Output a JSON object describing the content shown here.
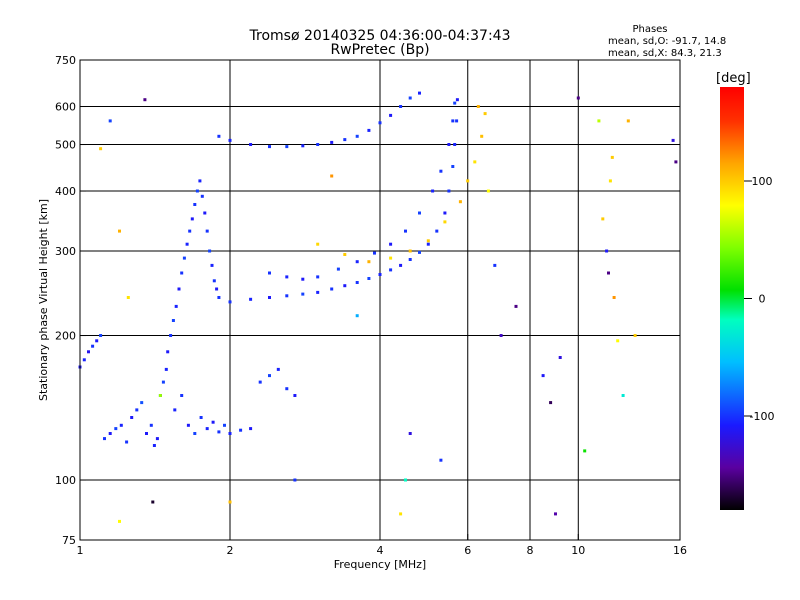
{
  "chart_data": {
    "type": "scatter",
    "title": "Tromsø 20140325 04:36:00-04:37:43",
    "subtitle": "RwPretec (Bp)",
    "xlabel": "Frequency [MHz]",
    "ylabel": "Stationary phase Virtual Height [km]",
    "x_scale": "log",
    "y_scale": "log",
    "xlim": [
      1,
      16
    ],
    "ylim": [
      75,
      750
    ],
    "x_ticks": [
      1,
      2,
      4,
      6,
      8,
      10,
      16
    ],
    "x_tick_labels": [
      "1",
      "2",
      "4",
      "6",
      "8",
      "10",
      "16"
    ],
    "y_ticks": [
      75,
      100,
      200,
      300,
      400,
      500,
      600,
      750
    ],
    "y_tick_labels": [
      "75",
      "100",
      "200",
      "300",
      "400",
      "500",
      "600",
      "750"
    ],
    "grid_x": [
      2,
      4,
      6,
      8,
      10
    ],
    "grid_y": [
      100,
      200,
      300,
      400,
      500,
      600
    ],
    "stats": {
      "header": "Phases",
      "o_line": "mean, sd,O: -91.7, 14.8",
      "x_line": "mean, sd,X: 84.3, 21.3"
    },
    "colorbar": {
      "unit": "[deg]",
      "min": -180,
      "max": 180,
      "ticks": [
        100,
        0,
        -100
      ],
      "tick_labels": [
        "100",
        "0",
        "-100"
      ]
    },
    "series": [
      {
        "id": "lowE",
        "points": [
          [
            1.0,
            172,
            -110
          ],
          [
            1.02,
            178,
            -105
          ],
          [
            1.04,
            185,
            -115
          ],
          [
            1.06,
            190,
            -100
          ],
          [
            1.08,
            195,
            -110
          ],
          [
            1.1,
            200,
            -95
          ],
          [
            1.12,
            122,
            -100
          ],
          [
            1.15,
            125,
            -110
          ],
          [
            1.18,
            128,
            -95
          ],
          [
            1.21,
            130,
            -105
          ],
          [
            1.24,
            120,
            -100
          ],
          [
            1.27,
            135,
            -110
          ],
          [
            1.3,
            140,
            -100
          ],
          [
            1.33,
            145,
            -90
          ],
          [
            1.36,
            125,
            -110
          ],
          [
            1.39,
            130,
            -100
          ],
          [
            1.41,
            118,
            -105
          ],
          [
            1.43,
            122,
            -110
          ],
          [
            1.45,
            150,
            -100
          ],
          [
            1.47,
            160,
            -95
          ],
          [
            1.49,
            170,
            -105
          ],
          [
            1.5,
            185,
            -110
          ],
          [
            1.52,
            200,
            -100
          ],
          [
            1.54,
            215,
            -95
          ],
          [
            1.56,
            230,
            -105
          ],
          [
            1.58,
            250,
            -110
          ],
          [
            1.6,
            270,
            -100
          ],
          [
            1.62,
            290,
            -95
          ],
          [
            1.64,
            310,
            -105
          ],
          [
            1.66,
            330,
            -100
          ],
          [
            1.68,
            350,
            -110
          ],
          [
            1.7,
            375,
            -100
          ],
          [
            1.72,
            400,
            -95
          ],
          [
            1.74,
            420,
            -105
          ],
          [
            1.76,
            390,
            -100
          ],
          [
            1.78,
            360,
            -110
          ],
          [
            1.8,
            330,
            -100
          ],
          [
            1.82,
            300,
            -95
          ],
          [
            1.84,
            280,
            -105
          ],
          [
            1.86,
            260,
            -100
          ],
          [
            1.88,
            250,
            -110
          ],
          [
            1.9,
            240,
            -100
          ],
          [
            1.55,
            140,
            -105
          ],
          [
            1.6,
            150,
            -100
          ],
          [
            1.65,
            130,
            -110
          ],
          [
            1.7,
            125,
            -95
          ],
          [
            1.75,
            135,
            -100
          ],
          [
            1.8,
            128,
            -105
          ],
          [
            1.85,
            132,
            -110
          ],
          [
            1.9,
            126,
            -100
          ],
          [
            1.95,
            130,
            -95
          ],
          [
            2.0,
            125,
            -105
          ],
          [
            2.1,
            127,
            -100
          ],
          [
            2.2,
            128,
            -110
          ],
          [
            2.3,
            160,
            -100
          ],
          [
            2.4,
            165,
            -95
          ],
          [
            2.5,
            170,
            -105
          ],
          [
            2.6,
            155,
            -100
          ],
          [
            2.7,
            150,
            -110
          ]
        ]
      },
      {
        "id": "Ftrace",
        "points": [
          [
            2.0,
            235,
            -100
          ],
          [
            2.2,
            238,
            -105
          ],
          [
            2.4,
            240,
            -110
          ],
          [
            2.6,
            242,
            -100
          ],
          [
            2.8,
            244,
            -95
          ],
          [
            3.0,
            246,
            -105
          ],
          [
            3.2,
            250,
            -100
          ],
          [
            3.4,
            254,
            -110
          ],
          [
            3.6,
            258,
            -100
          ],
          [
            3.8,
            263,
            -95
          ],
          [
            4.0,
            268,
            -105
          ],
          [
            4.2,
            274,
            -100
          ],
          [
            4.4,
            280,
            -110
          ],
          [
            4.6,
            288,
            -100
          ],
          [
            4.8,
            298,
            -95
          ],
          [
            5.0,
            310,
            -105
          ],
          [
            5.2,
            330,
            -100
          ],
          [
            5.4,
            360,
            -110
          ],
          [
            5.5,
            400,
            -100
          ],
          [
            5.6,
            450,
            -95
          ],
          [
            5.65,
            500,
            -105
          ],
          [
            5.7,
            560,
            -100
          ],
          [
            5.72,
            620,
            -110
          ],
          [
            2.4,
            270,
            -100
          ],
          [
            2.6,
            265,
            -105
          ],
          [
            2.8,
            262,
            -110
          ],
          [
            3.0,
            265,
            -100
          ],
          [
            3.3,
            275,
            -95
          ],
          [
            3.6,
            285,
            -105
          ],
          [
            3.9,
            297,
            -100
          ],
          [
            4.2,
            310,
            -110
          ],
          [
            4.5,
            330,
            -100
          ],
          [
            4.8,
            360,
            -95
          ],
          [
            5.1,
            400,
            -105
          ],
          [
            5.3,
            440,
            -100
          ],
          [
            5.5,
            500,
            -110
          ],
          [
            5.6,
            560,
            -100
          ],
          [
            5.65,
            610,
            -95
          ],
          [
            3.0,
            310,
            95
          ],
          [
            3.4,
            295,
            100
          ],
          [
            3.8,
            285,
            110
          ],
          [
            4.2,
            290,
            90
          ],
          [
            4.6,
            300,
            105
          ],
          [
            5.0,
            315,
            100
          ],
          [
            5.4,
            345,
            95
          ],
          [
            5.8,
            380,
            110
          ],
          [
            6.0,
            420,
            100
          ],
          [
            6.2,
            460,
            90
          ],
          [
            6.4,
            520,
            105
          ],
          [
            6.5,
            580,
            100
          ]
        ]
      },
      {
        "id": "topLayer",
        "points": [
          [
            1.9,
            520,
            -100
          ],
          [
            2.0,
            510,
            -105
          ],
          [
            2.2,
            500,
            -110
          ],
          [
            2.4,
            495,
            -100
          ],
          [
            2.6,
            495,
            -95
          ],
          [
            2.8,
            497,
            -105
          ],
          [
            3.0,
            500,
            -100
          ],
          [
            3.2,
            505,
            -110
          ],
          [
            3.4,
            512,
            -100
          ],
          [
            3.6,
            520,
            -95
          ],
          [
            3.8,
            535,
            -105
          ],
          [
            4.0,
            555,
            -100
          ],
          [
            4.2,
            575,
            -110
          ],
          [
            4.4,
            600,
            -100
          ],
          [
            4.6,
            625,
            -95
          ],
          [
            4.8,
            640,
            -105
          ]
        ]
      },
      {
        "id": "noise",
        "points": [
          [
            1.1,
            490,
            100
          ],
          [
            1.15,
            560,
            -95
          ],
          [
            1.2,
            330,
            110
          ],
          [
            1.25,
            240,
            90
          ],
          [
            1.35,
            620,
            -150
          ],
          [
            1.4,
            90,
            -170
          ],
          [
            1.45,
            150,
            50
          ],
          [
            1.2,
            82,
            80
          ],
          [
            2.0,
            90,
            105
          ],
          [
            2.7,
            100,
            -100
          ],
          [
            3.2,
            430,
            120
          ],
          [
            3.6,
            220,
            -60
          ],
          [
            4.4,
            85,
            90
          ],
          [
            4.5,
            100,
            -20
          ],
          [
            4.6,
            125,
            -120
          ],
          [
            5.3,
            110,
            -100
          ],
          [
            6.3,
            600,
            110
          ],
          [
            6.6,
            400,
            80
          ],
          [
            6.8,
            280,
            -100
          ],
          [
            7.0,
            200,
            -130
          ],
          [
            7.5,
            230,
            -150
          ],
          [
            8.5,
            165,
            -110
          ],
          [
            8.8,
            145,
            -160
          ],
          [
            9.0,
            85,
            -140
          ],
          [
            9.2,
            180,
            -120
          ],
          [
            10.0,
            625,
            -150
          ],
          [
            10.3,
            115,
            10
          ],
          [
            11.0,
            560,
            60
          ],
          [
            11.2,
            350,
            100
          ],
          [
            11.5,
            270,
            -150
          ],
          [
            11.8,
            240,
            120
          ],
          [
            12.0,
            195,
            80
          ],
          [
            12.3,
            150,
            -30
          ],
          [
            12.6,
            560,
            110
          ],
          [
            13.0,
            200,
            100
          ],
          [
            15.5,
            510,
            -120
          ],
          [
            15.7,
            460,
            -150
          ],
          [
            11.6,
            420,
            90
          ],
          [
            11.4,
            300,
            -110
          ],
          [
            11.7,
            470,
            100
          ]
        ]
      }
    ]
  }
}
